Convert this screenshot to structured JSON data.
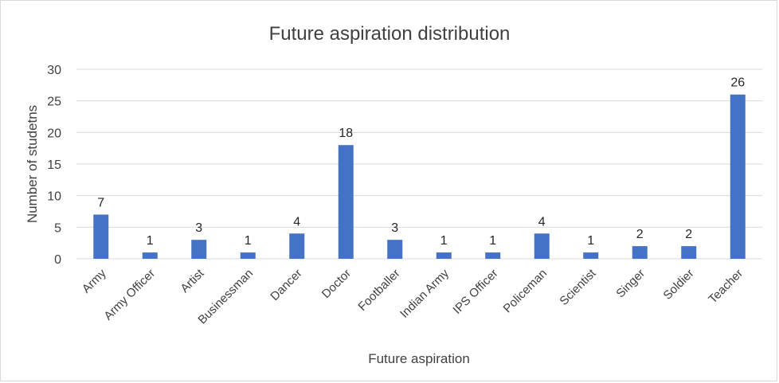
{
  "chart_data": {
    "type": "bar",
    "title": "Future aspiration distribution",
    "xlabel": "Future aspiration",
    "ylabel": "Number of studetns",
    "categories": [
      "Army",
      "Army Officer",
      "Artist",
      "Businessman",
      "Dancer",
      "Doctor",
      "Footballer",
      "Indian Army",
      "IPS Officer",
      "Policeman",
      "Scientist",
      "Singer",
      "Soldier",
      "Teacher"
    ],
    "values": [
      7,
      1,
      3,
      1,
      4,
      18,
      3,
      1,
      1,
      4,
      1,
      2,
      2,
      26
    ],
    "ylim": [
      0,
      30
    ],
    "yticks": [
      0,
      5,
      10,
      15,
      20,
      25,
      30
    ],
    "grid": true,
    "legend": "none",
    "bar_color": "#4472C4",
    "grid_color": "#d9d9d9"
  }
}
